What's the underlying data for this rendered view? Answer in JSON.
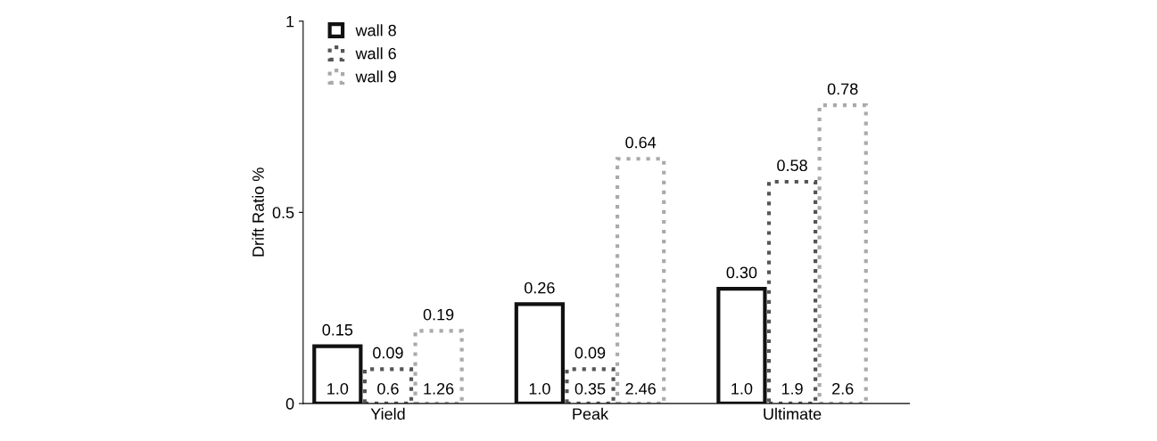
{
  "chart_data": {
    "type": "bar",
    "ylabel": "Drift Ratio %",
    "categories": [
      "Yield",
      "Peak",
      "Ultimate"
    ],
    "series": [
      {
        "name": "wall 8",
        "color": "#111111",
        "values": [
          0.15,
          0.26,
          0.3
        ],
        "value_labels": [
          "0.15",
          "0.26",
          "0.30"
        ],
        "line_style": "solid"
      },
      {
        "name": "wall 6",
        "color": "#555555",
        "values": [
          0.09,
          0.09,
          0.58
        ],
        "value_labels": [
          "0.09",
          "0.09",
          "0.58"
        ],
        "line_style": "dotted"
      },
      {
        "name": "wall 9",
        "color": "#aaaaaa",
        "values": [
          0.19,
          0.64,
          0.78
        ],
        "value_labels": [
          "0.19",
          "0.64",
          "0.78"
        ],
        "line_style": "dotted"
      }
    ],
    "annotations": [
      "1.0",
      "0.6",
      "1.26",
      "1.0",
      "0.35",
      "2.46",
      "1.0",
      "1.9",
      "2.6"
    ],
    "ylim": [
      0,
      1
    ],
    "yticks": [
      0,
      0.5,
      1
    ],
    "grid": false,
    "legend": "top left"
  }
}
